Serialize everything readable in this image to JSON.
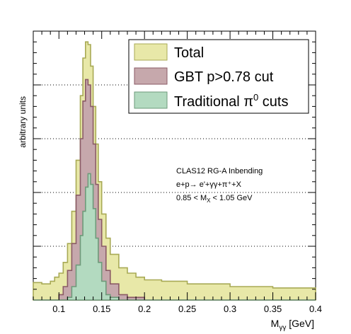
{
  "chart_data": {
    "type": "area",
    "ylabel": "arbitrary units",
    "xlabel_main": "M",
    "xlabel_sub": "γγ",
    "xlabel_unit": " [GeV]",
    "xlim": [
      0.07,
      0.4
    ],
    "ylim": [
      0,
      1.0
    ],
    "x_ticks": [
      0.1,
      0.15,
      0.2,
      0.25,
      0.3,
      0.35,
      0.4
    ],
    "x_tick_labels": [
      "0.1",
      "0.15",
      "0.2",
      "0.25",
      "0.3",
      "0.35",
      "0.4"
    ],
    "y_gridlines": [
      0.2,
      0.4,
      0.6,
      0.8,
      1.0
    ],
    "grid": "horizontal dotted",
    "legend_position": "top-right",
    "annotations": [
      {
        "text": "CLAS12 RG-A Inbending"
      },
      {
        "text": "e+p→ e'+γγ+π⁺+X"
      },
      {
        "text": "0.85 < M",
        "sub": "X",
        "after": " < 1.05 GeV"
      }
    ],
    "series": [
      {
        "name": "Total",
        "color": "#e8e8a8",
        "edge": "#a8aa55",
        "x": [
          0.07,
          0.08,
          0.09,
          0.095,
          0.1,
          0.105,
          0.11,
          0.115,
          0.12,
          0.125,
          0.128,
          0.131,
          0.134,
          0.137,
          0.14,
          0.143,
          0.146,
          0.15,
          0.155,
          0.16,
          0.17,
          0.18,
          0.19,
          0.2,
          0.22,
          0.25,
          0.3,
          0.35,
          0.4
        ],
        "values": [
          0.065,
          0.06,
          0.07,
          0.085,
          0.1,
          0.14,
          0.21,
          0.33,
          0.52,
          0.76,
          0.9,
          0.96,
          0.95,
          0.87,
          0.72,
          0.58,
          0.44,
          0.32,
          0.23,
          0.17,
          0.12,
          0.1,
          0.085,
          0.075,
          0.07,
          0.06,
          0.05,
          0.045,
          0.04
        ]
      },
      {
        "name": "GBT p>0.78 cut",
        "color": "#c6a8ac",
        "edge": "#8a5a66",
        "x": [
          0.07,
          0.09,
          0.1,
          0.105,
          0.11,
          0.115,
          0.12,
          0.125,
          0.128,
          0.131,
          0.134,
          0.137,
          0.14,
          0.143,
          0.146,
          0.15,
          0.155,
          0.16,
          0.17,
          0.18,
          0.2,
          0.25,
          0.3,
          0.4
        ],
        "values": [
          0.0,
          0.0,
          0.02,
          0.05,
          0.11,
          0.21,
          0.39,
          0.6,
          0.74,
          0.82,
          0.8,
          0.72,
          0.58,
          0.43,
          0.3,
          0.2,
          0.11,
          0.06,
          0.02,
          0.01,
          0.0,
          0.0,
          0.0,
          0.0
        ]
      },
      {
        "name": "Traditional π⁰ cuts",
        "label_main": "Traditional π",
        "label_sup": "0",
        "label_tail": " cuts",
        "color": "#b3dac0",
        "edge": "#6e9a7a",
        "x": [
          0.07,
          0.1,
          0.11,
          0.115,
          0.12,
          0.125,
          0.128,
          0.131,
          0.134,
          0.137,
          0.14,
          0.143,
          0.146,
          0.15,
          0.155,
          0.16,
          0.17,
          0.2,
          0.4
        ],
        "values": [
          0.0,
          0.0,
          0.01,
          0.05,
          0.13,
          0.24,
          0.33,
          0.42,
          0.47,
          0.43,
          0.34,
          0.23,
          0.14,
          0.07,
          0.02,
          0.01,
          0.0,
          0.0,
          0.0
        ]
      }
    ]
  }
}
